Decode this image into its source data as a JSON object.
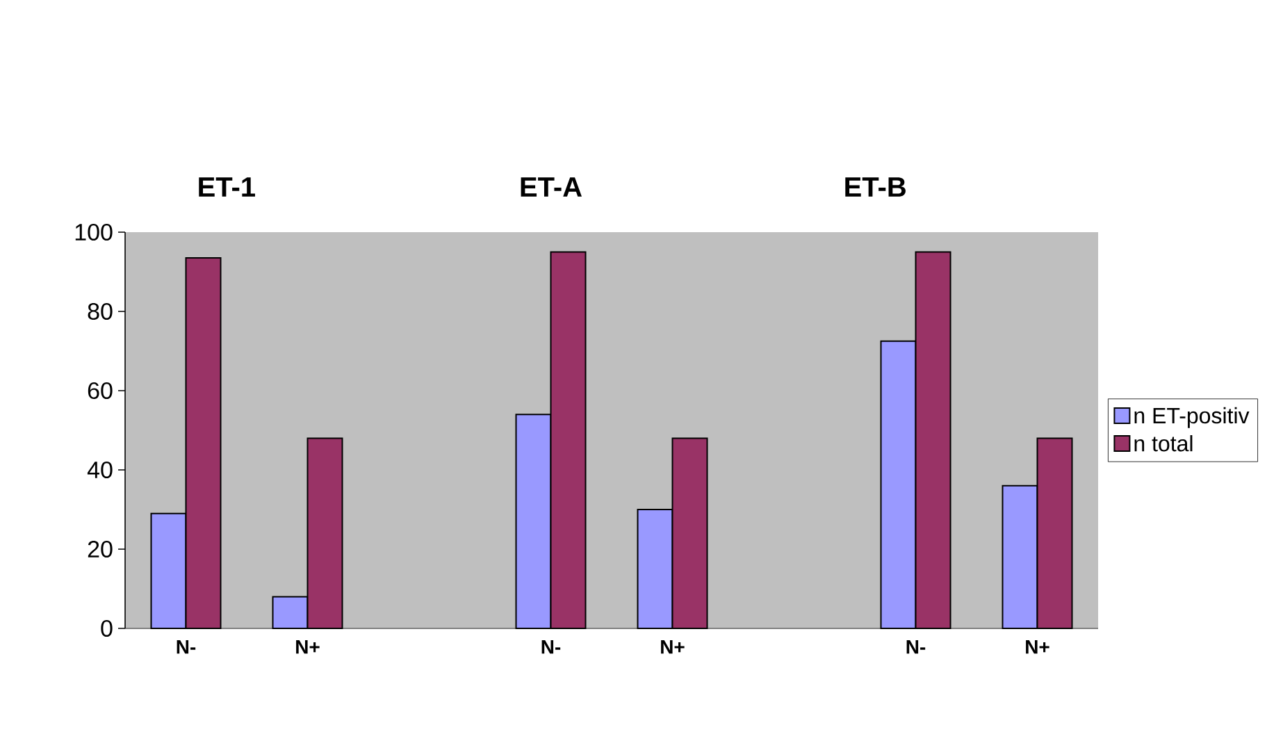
{
  "chart_data": {
    "type": "bar",
    "categories": [
      "N-",
      "N+",
      null,
      "N-",
      "N+",
      null,
      "N-",
      "N+"
    ],
    "series": [
      {
        "name": "n ET-positiv",
        "color": "#9999ff",
        "values": [
          29,
          8,
          null,
          54,
          30,
          null,
          72.5,
          36
        ]
      },
      {
        "name": "n total",
        "color": "#993366",
        "values": [
          93.5,
          48,
          null,
          95,
          48,
          null,
          95,
          48
        ]
      }
    ],
    "ylim": [
      0,
      100
    ],
    "yticks": [
      0,
      20,
      40,
      60,
      80,
      100
    ],
    "legend": "right",
    "annotations": [
      "ET-1",
      "ET-A",
      "ET-B"
    ]
  }
}
